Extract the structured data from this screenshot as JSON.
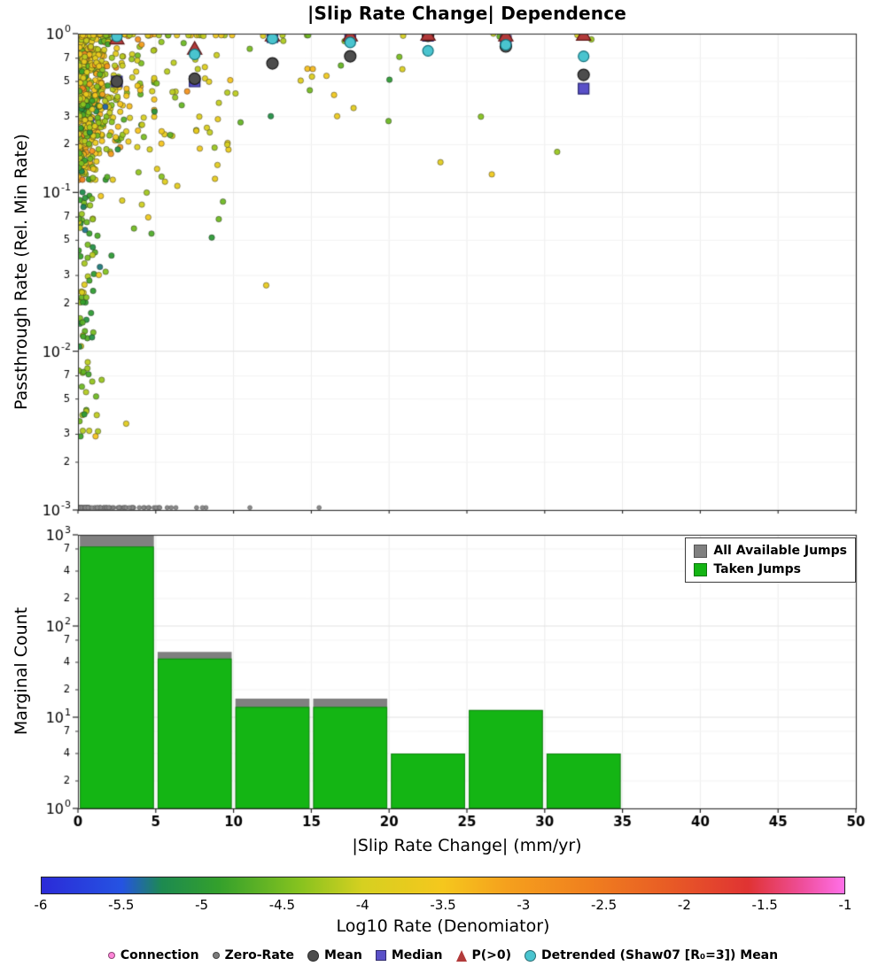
{
  "title": "|Slip Rate Change| Dependence",
  "chart_data": [
    {
      "type": "scatter",
      "title": "|Slip Rate Change| Dependence",
      "xlabel": "",
      "ylabel": "Passthrough Rate (Rel. Min Rate)",
      "xlim": [
        0,
        50
      ],
      "ylog_lim": [
        -3,
        0
      ],
      "y_major_tick_exponents": [
        0,
        -1,
        -2,
        -3
      ],
      "y_minor_tick_subs": [
        7,
        5,
        3,
        2
      ],
      "x_major_ticks": [
        0,
        5,
        10,
        15,
        20,
        25,
        30,
        35,
        40,
        45,
        50
      ],
      "grid": true,
      "summary_bins_x": [
        2.5,
        7.5,
        12.5,
        17.5,
        22.5,
        27.5,
        32.5
      ],
      "series": [
        {
          "name": "Mean",
          "marker": "circle",
          "color": "#4d4d4d",
          "edge": "#1a1a1a",
          "size": 13,
          "values_y": [
            0.5,
            0.52,
            0.65,
            0.72,
            0.97,
            0.83,
            0.55
          ]
        },
        {
          "name": "Median",
          "marker": "square",
          "color": "#5a50c8",
          "edge": "#26266e",
          "size": 12,
          "values_y": [
            0.5,
            0.5,
            0.95,
            0.95,
            0.97,
            0.9,
            0.45
          ]
        },
        {
          "name": "P(>0)",
          "marker": "triangle",
          "color": "#b23a3a",
          "edge": "#5e1717",
          "size": 14,
          "values_y": [
            0.93,
            0.8,
            0.97,
            0.97,
            0.98,
            0.97,
            0.98
          ]
        },
        {
          "name": "Detrended (Shaw07 [R₀=3]) Mean",
          "marker": "circle",
          "color": "#4ac4cf",
          "edge": "#17727c",
          "size": 12,
          "values_y": [
            0.96,
            0.74,
            0.93,
            0.88,
            0.78,
            0.85,
            0.72
          ]
        }
      ],
      "outlier_points": [
        {
          "x": 12.1,
          "y": 0.026,
          "c": -3.7
        },
        {
          "x": 8.6,
          "y": 0.052,
          "c": -5.0
        },
        {
          "x": 3.1,
          "y": 0.0035,
          "c": -3.8
        },
        {
          "x": 14.9,
          "y": 0.44,
          "c": -4.5
        },
        {
          "x": 20.9,
          "y": 0.97,
          "c": -4.0
        },
        {
          "x": 23.3,
          "y": 0.155,
          "c": -3.8
        },
        {
          "x": 26.6,
          "y": 0.13,
          "c": -3.6
        },
        {
          "x": 25.9,
          "y": 0.3,
          "c": -4.4
        },
        {
          "x": 27.1,
          "y": 0.96,
          "c": -4.6
        },
        {
          "x": 26.7,
          "y": 1.0,
          "c": -4.1
        },
        {
          "x": 30.8,
          "y": 0.18,
          "c": -4.3
        },
        {
          "x": 32.1,
          "y": 0.98,
          "c": -4.0
        },
        {
          "x": 33.0,
          "y": 0.92,
          "c": -4.3
        },
        {
          "x": 11.9,
          "y": 0.97,
          "c": -3.9
        },
        {
          "x": 13.2,
          "y": 0.9,
          "c": -4.2
        },
        {
          "x": 16.9,
          "y": 0.63,
          "c": -4.6
        },
        {
          "x": 9.6,
          "y": 0.2,
          "c": -4.0
        },
        {
          "x": 7.8,
          "y": 0.3,
          "c": -3.9
        }
      ],
      "cloud": {
        "seed": 1337,
        "point_radius": 3.2,
        "clusters": [
          {
            "type": "exp_normal",
            "count": 560,
            "x_scale": 1.1,
            "x_max": 4.9,
            "ylog_mean": -0.28,
            "ylog_sd": 0.3,
            "ylog_min": -0.92,
            "ylog_max": -0.004,
            "c_mean": -3.9,
            "c_sd": 0.45
          },
          {
            "type": "exp_pow",
            "count": 150,
            "x_scale": 0.7,
            "x_max": 3.6,
            "ylog_top": -0.45,
            "ylog_span": 2.1,
            "pow": 1.7,
            "c_mean": -4.5,
            "c_sd": 0.45
          },
          {
            "type": "uni_normal",
            "count": 95,
            "x_min": 0.3,
            "x_max": 10.0,
            "ylog_mean": -0.35,
            "ylog_sd": 0.42,
            "ylog_min": -1.75,
            "ylog_max": -0.01,
            "c_mean": -3.95,
            "c_sd": 0.4
          },
          {
            "type": "uni_normal",
            "count": 26,
            "x_min": 5.0,
            "x_max": 21.0,
            "ylog_mean": -0.22,
            "ylog_sd": 0.28,
            "ylog_min": -0.9,
            "ylog_max": -0.01,
            "c_mean": -4.1,
            "c_sd": 0.45
          }
        ]
      },
      "zero_rate": {
        "count": 95,
        "x_scale": 2.4,
        "x_max": 15.5,
        "ylog": -2.985,
        "color": "#8b8b8b",
        "edge": "#5e5e5e",
        "radius": 2.4
      }
    },
    {
      "type": "bar",
      "ylabel": "Marginal Count",
      "xlabel": "|Slip Rate Change| (mm/yr)",
      "xlim": [
        0,
        50
      ],
      "ylog_lim": [
        0,
        3
      ],
      "y_major_tick_exponents": [
        3,
        2,
        1,
        0
      ],
      "y_minor_tick_subs": [
        7,
        4,
        2
      ],
      "x_ticks": [
        0,
        5,
        10,
        15,
        20,
        25,
        30,
        35,
        40,
        45,
        50
      ],
      "grid": true,
      "bin_edges": [
        0,
        5,
        10,
        15,
        20,
        25,
        30,
        35
      ],
      "series": [
        {
          "name": "All Available Jumps",
          "color": "#808080",
          "values": [
            1080,
            52,
            16,
            16,
            4,
            12,
            4
          ]
        },
        {
          "name": "Taken Jumps",
          "color": "#14b514",
          "values": [
            745,
            44,
            13,
            13,
            4,
            12,
            4
          ]
        }
      ],
      "legend_position": "upper right"
    },
    {
      "type": "colorbar",
      "label": "Log10 Rate (Denomiator)",
      "range": [
        -6,
        -1
      ],
      "ticks": [
        -6,
        -5.5,
        -5,
        -4.5,
        -4,
        -3.5,
        -3,
        -2.5,
        -2,
        -1.5,
        -1
      ],
      "stops": [
        {
          "t": 0.0,
          "color": "#2b2bd8"
        },
        {
          "t": 0.1,
          "color": "#2553e2"
        },
        {
          "t": 0.15,
          "color": "#1d8a50"
        },
        {
          "t": 0.22,
          "color": "#33a02c"
        },
        {
          "t": 0.32,
          "color": "#85c21f"
        },
        {
          "t": 0.4,
          "color": "#d6d020"
        },
        {
          "t": 0.5,
          "color": "#f5c71d"
        },
        {
          "t": 0.58,
          "color": "#f5a01d"
        },
        {
          "t": 0.68,
          "color": "#f0801e"
        },
        {
          "t": 0.78,
          "color": "#e85c25"
        },
        {
          "t": 0.88,
          "color": "#e03333"
        },
        {
          "t": 0.95,
          "color": "#ef4f9e"
        },
        {
          "t": 1.0,
          "color": "#ff70e8"
        }
      ]
    }
  ],
  "marker_legend": [
    {
      "label": "Connection",
      "marker": "dot",
      "color": "#ff85d8",
      "size": 8,
      "icon": "connection-dot-icon"
    },
    {
      "label": "Zero-Rate",
      "marker": "dot",
      "color": "#7d7d7d",
      "size": 8,
      "icon": "zero-rate-dot-icon"
    },
    {
      "label": "Mean",
      "marker": "circle",
      "color": "#4d4d4d",
      "size": 13,
      "icon": "mean-circle-icon"
    },
    {
      "label": "Median",
      "marker": "square",
      "color": "#5a50c8",
      "size": 12,
      "icon": "median-square-icon"
    },
    {
      "label": "P(>0)",
      "marker": "triangle",
      "color": "#b23a3a",
      "size": 13,
      "icon": "p-gt-zero-triangle-icon"
    },
    {
      "label": "Detrended (Shaw07 [R₀=3]) Mean",
      "marker": "circle",
      "color": "#4ac4cf",
      "size": 13,
      "icon": "detrended-circle-icon"
    }
  ]
}
